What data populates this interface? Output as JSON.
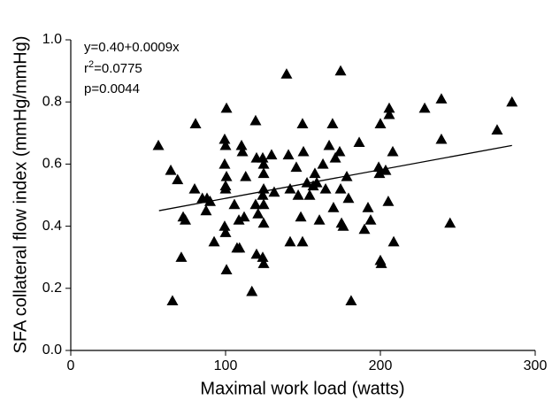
{
  "chart_data": {
    "type": "scatter",
    "xlabel": "Maximal work load (watts)",
    "ylabel": "SFA collateral flow index (mmHg/mmHg)",
    "xlim": [
      0,
      300
    ],
    "xticks": [
      0,
      100,
      200,
      300
    ],
    "ylim": [
      0,
      1
    ],
    "yticks": [
      {
        "value": 0,
        "label": "0.0"
      },
      {
        "value": 0.2,
        "label": "0.2"
      },
      {
        "value": 0.4,
        "label": "0.4"
      },
      {
        "value": 0.6,
        "label": "0.6"
      },
      {
        "value": 0.8,
        "label": "0.8"
      },
      {
        "value": 1,
        "label": "1.0"
      }
    ],
    "annotations": [
      "y=0.40+0.0009x",
      "p=0.0044"
    ],
    "r_squared_label": [
      "r",
      "2",
      "=0.0775"
    ],
    "color": "#000000",
    "x": [
      56.6,
      64.6,
      65.7,
      69,
      71.4,
      72.6,
      74,
      80.6,
      80,
      85,
      88,
      87.4,
      90,
      92.6,
      100.6,
      99.4,
      100,
      99.4,
      100.6,
      100,
      100,
      99.4,
      100,
      100.6,
      105.7,
      108.6,
      107.4,
      109,
      110.3,
      110.9,
      113,
      112,
      117,
      119.4,
      120,
      119.4,
      120,
      121,
      124,
      124.6,
      124.6,
      124.6,
      124,
      124.6,
      124.6,
      124,
      124.6,
      129.7,
      131.4,
      139.4,
      140.6,
      141.7,
      141.7,
      145.7,
      146.9,
      148.6,
      149.7,
      149.7,
      150.3,
      152.6,
      154.3,
      156.6,
      157.7,
      158.9,
      160.6,
      162.9,
      164.6,
      166.9,
      169.1,
      169.7,
      170.9,
      174.3,
      173.7,
      174.3,
      174.9,
      176,
      178.3,
      181.1,
      179.4,
      186.3,
      189.7,
      192,
      193.7,
      198.9,
      199.4,
      200,
      200,
      200.6,
      203.4,
      205.7,
      205.7,
      205.1,
      208,
      208.6,
      228.6,
      239.4,
      239.4,
      245,
      275.4,
      285
    ],
    "values": [
      0.66,
      0.58,
      0.16,
      0.55,
      0.3,
      0.43,
      0.42,
      0.73,
      0.52,
      0.49,
      0.49,
      0.45,
      0.48,
      0.35,
      0.78,
      0.68,
      0.66,
      0.6,
      0.56,
      0.53,
      0.52,
      0.4,
      0.38,
      0.26,
      0.47,
      0.42,
      0.33,
      0.33,
      0.66,
      0.64,
      0.56,
      0.43,
      0.19,
      0.74,
      0.62,
      0.47,
      0.31,
      0.44,
      0.62,
      0.6,
      0.57,
      0.52,
      0.5,
      0.47,
      0.41,
      0.3,
      0.28,
      0.63,
      0.51,
      0.89,
      0.63,
      0.52,
      0.35,
      0.59,
      0.5,
      0.43,
      0.35,
      0.73,
      0.64,
      0.54,
      0.5,
      0.53,
      0.57,
      0.54,
      0.42,
      0.6,
      0.52,
      0.66,
      0.73,
      0.46,
      0.62,
      0.9,
      0.64,
      0.52,
      0.41,
      0.4,
      0.56,
      0.16,
      0.49,
      0.67,
      0.39,
      0.46,
      0.42,
      0.59,
      0.57,
      0.73,
      0.29,
      0.28,
      0.58,
      0.76,
      0.78,
      0.48,
      0.64,
      0.35,
      0.78,
      0.81,
      0.68,
      0.41,
      0.71,
      0.8
    ],
    "fit_line": {
      "x": [
        57,
        285
      ],
      "y": [
        0.45,
        0.66
      ]
    }
  }
}
